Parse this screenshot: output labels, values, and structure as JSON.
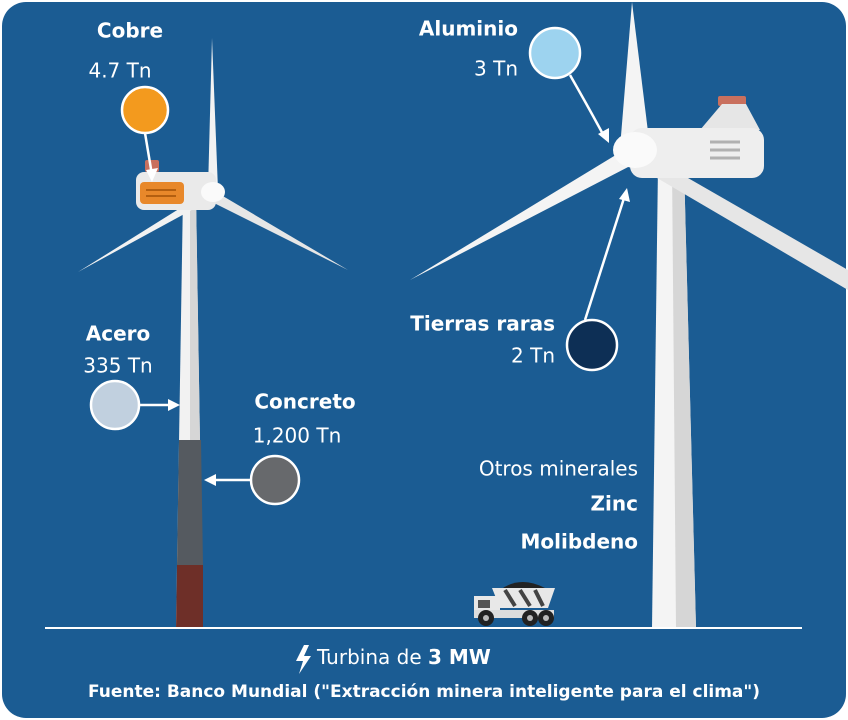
{
  "materials": [
    {
      "name": "Cobre",
      "amount": "4.7 Tn"
    },
    {
      "name": "Aluminio",
      "amount": "3 Tn"
    },
    {
      "name": "Acero",
      "amount": "335 Tn"
    },
    {
      "name": "Concreto",
      "amount": "1,200 Tn"
    },
    {
      "name": "Tierras raras",
      "amount": "2 Tn"
    }
  ],
  "other_minerals": {
    "title": "Otros minerales",
    "items": [
      "Zinc",
      "Molibdeno"
    ]
  },
  "footer": {
    "caption": "Turbina de",
    "capacity": "3 MW",
    "source": "Fuente: Banco Mundial (\"Extracción minera inteligente para el clima\")"
  }
}
